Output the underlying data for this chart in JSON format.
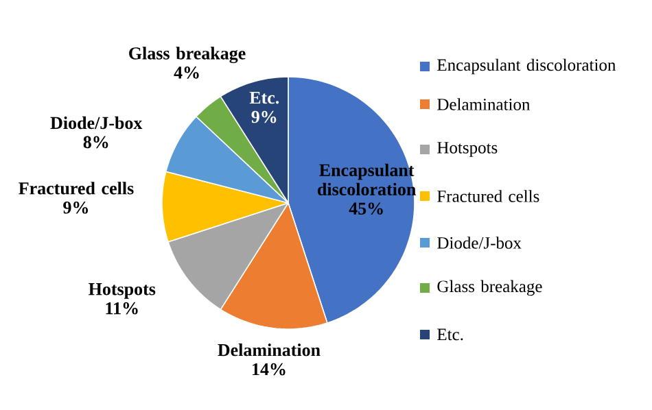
{
  "chart_data": {
    "type": "pie",
    "categories": [
      "Encapsulant discoloration",
      "Delamination",
      "Hotspots",
      "Fractured cells",
      "Diode/J-box",
      "Glass breakage",
      "Etc."
    ],
    "values": [
      45,
      14,
      11,
      9,
      8,
      4,
      9
    ],
    "colors": [
      "#4472c4",
      "#ed7d31",
      "#a5a5a5",
      "#ffc000",
      "#5b9bd5",
      "#70ad47",
      "#264478"
    ],
    "value_labels": [
      "45%",
      "14%",
      "11%",
      "9%",
      "8%",
      "4%",
      "9%"
    ],
    "legend": "right"
  }
}
